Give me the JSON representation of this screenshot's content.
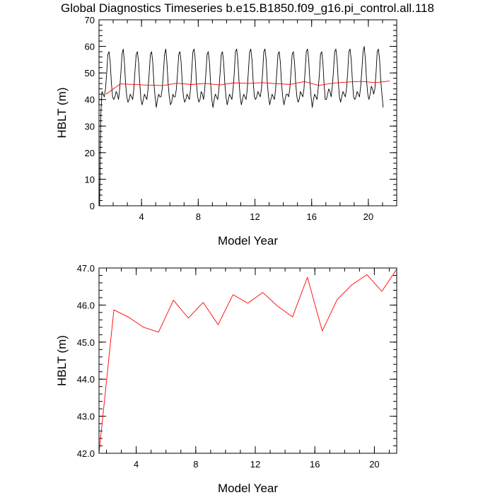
{
  "page_title": "Global Diagnostics Timeseries b.e15.B1850.f09_g16.pi_control.all.118",
  "colors": {
    "monthly_line": "#000000",
    "annual_line": "#ff0000",
    "axes": "#000000",
    "background": "#ffffff"
  },
  "chart_data": [
    {
      "type": "line",
      "title": "Global Diagnostics Timeseries b.e15.B1850.f09_g16.pi_control.all.118",
      "xlabel": "Model Year",
      "ylabel": "HBLT (m)",
      "xlim": [
        1,
        22
      ],
      "ylim": [
        0,
        70
      ],
      "x_ticks": [
        4,
        8,
        12,
        16,
        20
      ],
      "x_tick_labels": [
        "4",
        "8",
        "12",
        "16",
        "20"
      ],
      "x_minor_step": 1,
      "y_ticks": [
        0,
        10,
        20,
        30,
        40,
        50,
        60,
        70
      ],
      "y_tick_labels": [
        "0",
        "10",
        "20",
        "30",
        "40",
        "50",
        "60",
        "70"
      ],
      "y_minor_step": 2,
      "grid": false,
      "series": [
        {
          "color": "#000000",
          "monthly": true,
          "x_start": 1.042,
          "x_step": 0.0833333,
          "values": [
            0,
            34,
            43,
            42,
            41,
            44,
            50,
            57,
            58,
            54,
            46,
            41,
            40,
            41,
            43,
            42,
            40,
            44,
            50,
            57,
            59,
            54,
            46,
            41,
            39,
            40,
            42,
            41,
            40,
            44,
            51,
            57,
            58,
            54,
            46,
            40,
            38,
            40,
            42,
            41,
            40,
            44,
            50,
            57,
            58,
            54,
            46,
            41,
            37,
            40,
            42,
            41,
            41,
            44,
            50,
            57,
            59,
            54,
            46,
            41,
            38,
            39,
            42,
            41,
            41,
            44,
            50,
            57,
            58,
            54,
            46,
            41,
            39,
            40,
            42,
            41,
            40,
            44,
            51,
            58,
            59,
            55,
            46,
            41,
            39,
            40,
            43,
            42,
            40,
            44,
            50,
            57,
            58,
            54,
            46,
            40,
            37,
            40,
            42,
            41,
            40,
            44,
            50,
            57,
            58,
            54,
            46,
            41,
            38,
            40,
            42,
            41,
            40,
            44,
            50,
            58,
            59,
            55,
            47,
            41,
            38,
            40,
            42,
            41,
            40,
            44,
            51,
            58,
            59,
            55,
            47,
            41,
            40,
            41,
            43,
            42,
            41,
            44,
            50,
            58,
            59,
            55,
            46,
            41,
            38,
            40,
            42,
            41,
            40,
            44,
            50,
            57,
            58,
            54,
            46,
            41,
            38,
            40,
            42,
            42,
            41,
            44,
            50,
            57,
            58,
            54,
            46,
            41,
            39,
            40,
            43,
            42,
            41,
            44,
            51,
            58,
            59,
            55,
            47,
            41,
            37,
            40,
            42,
            41,
            40,
            44,
            49,
            57,
            58,
            54,
            46,
            40,
            40,
            42,
            44,
            43,
            41,
            45,
            51,
            58,
            59,
            55,
            47,
            41,
            39,
            41,
            43,
            42,
            41,
            44,
            50,
            58,
            59,
            55,
            47,
            41,
            40,
            41,
            43,
            42,
            41,
            45,
            51,
            58,
            60,
            55,
            47,
            42,
            40,
            42,
            45,
            44,
            42,
            44,
            50,
            58,
            59,
            55,
            47,
            42,
            37
          ]
        },
        {
          "color": "#ff0000",
          "x": [
            1.5,
            2.5,
            3.5,
            4.5,
            5.5,
            6.5,
            7.5,
            8.5,
            9.5,
            10.5,
            11.5,
            12.5,
            13.5,
            14.5,
            15.5,
            16.5,
            17.5,
            18.5,
            19.5,
            20.5,
            21.5
          ],
          "values": [
            42.0,
            45.87,
            45.67,
            45.4,
            45.27,
            46.13,
            45.65,
            46.07,
            45.47,
            46.28,
            46.05,
            46.34,
            45.97,
            45.68,
            46.75,
            45.3,
            46.15,
            46.55,
            46.82,
            46.37,
            46.97
          ]
        }
      ]
    },
    {
      "type": "line",
      "title": "",
      "xlabel": "Model Year",
      "ylabel": "HBLT (m)",
      "xlim": [
        1.5,
        21.5
      ],
      "ylim": [
        42.0,
        47.0
      ],
      "x_ticks": [
        4,
        8,
        12,
        16,
        20
      ],
      "x_tick_labels": [
        "4",
        "8",
        "12",
        "16",
        "20"
      ],
      "x_minor_step": 1,
      "y_ticks": [
        42.0,
        43.0,
        44.0,
        45.0,
        46.0,
        47.0
      ],
      "y_tick_labels": [
        "42.0",
        "43.0",
        "44.0",
        "45.0",
        "46.0",
        "47.0"
      ],
      "y_minor_step": 0.2,
      "grid": false,
      "series": [
        {
          "color": "#ff0000",
          "x": [
            1.5,
            2.5,
            3.5,
            4.5,
            5.5,
            6.5,
            7.5,
            8.5,
            9.5,
            10.5,
            11.5,
            12.5,
            13.5,
            14.5,
            15.5,
            16.5,
            17.5,
            18.5,
            19.5,
            20.5,
            21.5
          ],
          "values": [
            42.0,
            45.87,
            45.67,
            45.4,
            45.27,
            46.13,
            45.65,
            46.07,
            45.47,
            46.28,
            46.05,
            46.34,
            45.97,
            45.68,
            46.75,
            45.3,
            46.15,
            46.55,
            46.82,
            46.37,
            46.97
          ]
        }
      ]
    }
  ]
}
